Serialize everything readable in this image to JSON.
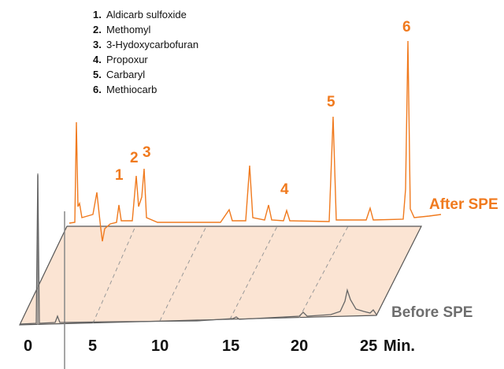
{
  "legend": [
    {
      "number": "1.",
      "label": "Aldicarb sulfoxide"
    },
    {
      "number": "2.",
      "label": "Methomyl"
    },
    {
      "number": "3.",
      "label": "3-Hydoxycarbofuran"
    },
    {
      "number": "4.",
      "label": "Propoxur"
    },
    {
      "number": "5.",
      "label": "Carbaryl"
    },
    {
      "number": "6.",
      "label": "Methiocarb"
    }
  ],
  "peak_labels": [
    "1",
    "2",
    "3",
    "4",
    "5",
    "6"
  ],
  "traces": {
    "after": "After SPE",
    "before": "Before SPE"
  },
  "axis": {
    "ticks": [
      "0",
      "5",
      "10",
      "15",
      "20",
      "25"
    ],
    "unit": "Min."
  }
}
